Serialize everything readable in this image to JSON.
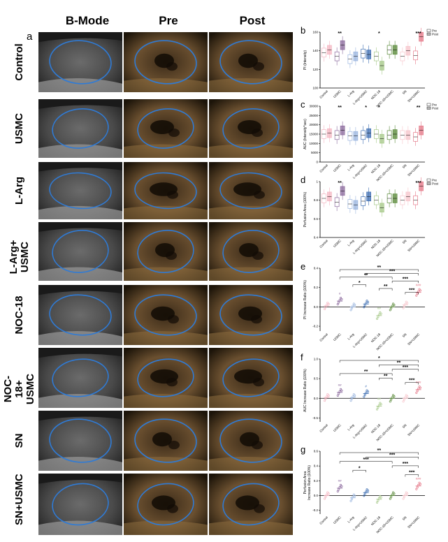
{
  "panel_a": {
    "letter": "a",
    "columns": [
      "B-Mode",
      "Pre",
      "Post"
    ],
    "rows": [
      "Control",
      "USMC",
      "L-Arg",
      "L-Arg+\nUSMC",
      "NOC-18",
      "NOC-18+\nUSMC",
      "SN",
      "SN+USMC"
    ]
  },
  "groups": [
    "Control",
    "USMC",
    "L-Arg",
    "L-Arg+USMC",
    "NOC-18",
    "NOC-18+USMC",
    "SN",
    "SN+USMC"
  ],
  "colors": {
    "Control": "#f4b6c2",
    "USMC": "#8c6b9e",
    "L-Arg": "#9bb6df",
    "L-Arg+USMC": "#3f6fb3",
    "NOC-18": "#a7c98a",
    "NOC-18+USMC": "#5a8a3a",
    "SN": "#f7c6cc",
    "SN+USMC": "#e57a8a",
    "contour": "#2f7bd6"
  },
  "legend": {
    "pre": "Pre",
    "post": "Post"
  },
  "chart_data": [
    {
      "panel": "b",
      "type": "box",
      "ylabel": "PI (Intensity)",
      "ylim": [
        100,
        160
      ],
      "yticks": [
        100,
        120,
        140,
        160
      ],
      "legend": [
        "Pre",
        "Post"
      ],
      "pre": [
        138,
        134,
        131,
        137,
        134,
        141,
        134,
        135
      ],
      "post": [
        141,
        146,
        134,
        136,
        124,
        141,
        140,
        155
      ],
      "significance": [
        {
          "group": "USMC",
          "label": "**"
        },
        {
          "group": "NOC-18",
          "label": "*"
        },
        {
          "group": "SN+USMC",
          "label": "***"
        }
      ]
    },
    {
      "panel": "c",
      "type": "box",
      "ylabel": "AUC (Intensity*sec)",
      "ylim": [
        0,
        30000
      ],
      "yticks": [
        0,
        5000,
        10000,
        15000,
        20000,
        25000,
        30000
      ],
      "yticklabels": [
        "0",
        "5000",
        "10000",
        "15000",
        "20000",
        "25000",
        "30000"
      ],
      "legend": [
        "Pre",
        "Post"
      ],
      "pre": [
        15000,
        14500,
        14000,
        14500,
        15000,
        14500,
        14500,
        13500
      ],
      "post": [
        15500,
        17000,
        14000,
        15500,
        12500,
        15000,
        14500,
        17000
      ],
      "significance": [
        {
          "group": "USMC",
          "label": "**"
        },
        {
          "group": "L-Arg+USMC",
          "label": "*"
        },
        {
          "group": "NOC-18",
          "label": "*"
        },
        {
          "group": "SN+USMC",
          "label": "**"
        }
      ]
    },
    {
      "panel": "d",
      "type": "box",
      "ylabel": "Perfusion Area (100%)",
      "ylim": [
        0.4,
        1.0
      ],
      "yticks": [
        0.4,
        0.6,
        0.8,
        1.0
      ],
      "legend": [
        "Pre",
        "Post"
      ],
      "pre": [
        0.82,
        0.78,
        0.76,
        0.79,
        0.8,
        0.82,
        0.8,
        0.8
      ],
      "post": [
        0.84,
        0.9,
        0.75,
        0.84,
        0.72,
        0.82,
        0.84,
        0.95
      ],
      "significance": [
        {
          "group": "USMC",
          "label": "**"
        },
        {
          "group": "SN+USMC",
          "label": "***"
        }
      ]
    },
    {
      "panel": "e",
      "type": "scatter",
      "ylabel": "PI Increase Ratio (100%)",
      "ylim": [
        -0.25,
        0.4
      ],
      "yticks": [
        -0.2,
        0.0,
        0.2,
        0.4
      ],
      "yticklabels": [
        "-0.2",
        "0.0",
        "0.2",
        "0.4"
      ],
      "means": [
        0.01,
        0.06,
        0.0,
        0.03,
        -0.09,
        0.0,
        0.02,
        0.15
      ],
      "marks": [
        {
          "group": "USMC",
          "label": "#"
        },
        {
          "group": "NOC-18",
          "label": "##"
        },
        {
          "group": "SN+USMC",
          "label": "###"
        }
      ],
      "brackets": [
        {
          "from": "USMC",
          "to": "SN+USMC",
          "label": "**"
        },
        {
          "from": "L-Arg+USMC",
          "to": "SN+USMC",
          "label": "***"
        },
        {
          "from": "USMC",
          "to": "NOC-18+USMC",
          "label": "**"
        },
        {
          "from": "NOC-18+USMC",
          "to": "SN+USMC",
          "label": "***"
        },
        {
          "from": "L-Arg",
          "to": "L-Arg+USMC",
          "label": "*"
        },
        {
          "from": "NOC-18",
          "to": "NOC-18+USMC",
          "label": "**"
        },
        {
          "from": "SN",
          "to": "SN+USMC",
          "label": "***"
        }
      ]
    },
    {
      "panel": "f",
      "type": "scatter",
      "ylabel": "AUC Increase Ratio (100%)",
      "ylim": [
        -0.6,
        1.0
      ],
      "yticks": [
        -0.5,
        0.0,
        0.5,
        1.0
      ],
      "yticklabels": [
        "-0.5",
        "0.0",
        "0.5",
        "1.0"
      ],
      "means": [
        0.02,
        0.15,
        0.02,
        0.12,
        -0.2,
        0.0,
        0.0,
        0.22
      ],
      "marks": [
        {
          "group": "USMC",
          "label": "##"
        },
        {
          "group": "L-Arg+USMC",
          "label": "#"
        },
        {
          "group": "NOC-18",
          "label": "##"
        },
        {
          "group": "SN+USMC",
          "label": "###"
        }
      ],
      "brackets": [
        {
          "from": "USMC",
          "to": "SN+USMC",
          "label": "*"
        },
        {
          "from": "NOC-18",
          "to": "SN+USMC",
          "label": "**"
        },
        {
          "from": "NOC-18+USMC",
          "to": "SN+USMC",
          "label": "***"
        },
        {
          "from": "USMC",
          "to": "NOC-18+USMC",
          "label": "**"
        },
        {
          "from": "NOC-18",
          "to": "NOC-18+USMC",
          "label": "**"
        },
        {
          "from": "SN",
          "to": "SN+USMC",
          "label": "***"
        }
      ]
    },
    {
      "panel": "g",
      "type": "scatter",
      "ylabel": "Perfusion Area\nIncrease Ratio (100%)",
      "ylim": [
        -0.25,
        0.6
      ],
      "yticks": [
        -0.2,
        0.0,
        0.2,
        0.4,
        0.6
      ],
      "yticklabels": [
        "-0.2",
        "0.0",
        "0.2",
        "0.4",
        "0.6"
      ],
      "means": [
        0.0,
        0.1,
        -0.03,
        0.04,
        -0.05,
        0.0,
        0.0,
        0.13
      ],
      "marks": [
        {
          "group": "USMC",
          "label": "##"
        },
        {
          "group": "SN+USMC",
          "label": "###"
        }
      ],
      "brackets": [
        {
          "from": "USMC",
          "to": "SN+USMC",
          "label": "**"
        },
        {
          "from": "L-Arg+USMC",
          "to": "SN+USMC",
          "label": "***"
        },
        {
          "from": "USMC",
          "to": "NOC-18+USMC",
          "label": "***"
        },
        {
          "from": "NOC-18+USMC",
          "to": "SN+USMC",
          "label": "***"
        },
        {
          "from": "L-Arg",
          "to": "L-Arg+USMC",
          "label": "*"
        },
        {
          "from": "SN",
          "to": "SN+USMC",
          "label": "***"
        }
      ]
    }
  ]
}
